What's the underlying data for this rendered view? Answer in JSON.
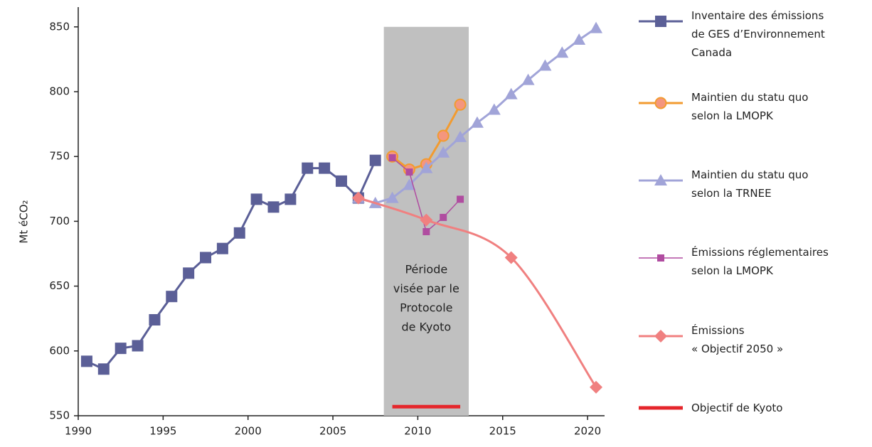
{
  "chart_data": {
    "type": "line",
    "ylabel": "Mt éCO₂",
    "xlim": [
      1990,
      2021.3
    ],
    "xticks": [
      1990,
      1995,
      2000,
      2005,
      2010,
      2015,
      2020
    ],
    "ylim": [
      550,
      860
    ],
    "yticks": [
      550,
      600,
      650,
      700,
      750,
      800,
      850
    ],
    "shaded_region": {
      "xlim": [
        2008,
        2013
      ],
      "ylim": [
        550,
        850
      ],
      "color": "#c0c0c0"
    },
    "annotation": [
      "Période",
      "visée par le",
      "Protocole",
      "de Kyoto"
    ],
    "series": [
      {
        "name": "Inventaire des émissions\nde GES d’Environnement\nCanada",
        "color": "#5b5f97",
        "marker": "square",
        "line_width": 3,
        "x": [
          1990.5,
          1991.5,
          1992.5,
          1993.5,
          1994.5,
          1995.5,
          1996.5,
          1997.5,
          1998.5,
          1999.5,
          2000.5,
          2001.5,
          2002.5,
          2003.5,
          2004.5,
          2005.5,
          2006.5,
          2007.5
        ],
        "values": [
          592,
          586,
          602,
          604,
          624,
          642,
          660,
          672,
          679,
          691,
          717,
          711,
          717,
          741,
          741,
          731,
          718,
          747
        ]
      },
      {
        "name": "Maintien du statu quo\nselon la LMOPK",
        "color": "#f29b30",
        "marker_fill": "#f4967e",
        "marker": "circle",
        "line_width": 3,
        "x": [
          2008.5,
          2009.5,
          2010.5,
          2011.5,
          2012.5
        ],
        "values": [
          750,
          740,
          744,
          766,
          790
        ]
      },
      {
        "name": "Maintien du statu quo\nselon la TRNEE",
        "color": "#a1a4d8",
        "marker": "triangle",
        "line_width": 3,
        "x": [
          2006.5,
          2007.5,
          2008.5,
          2009.5,
          2010.5,
          2011.5,
          2012.5,
          2013.5,
          2014.5,
          2015.5,
          2016.5,
          2017.5,
          2018.5,
          2019.5,
          2020.5
        ],
        "values": [
          718,
          714,
          718,
          728,
          741,
          753,
          765,
          776,
          786,
          798,
          809,
          820,
          830,
          840,
          849
        ]
      },
      {
        "name": "Émissions réglementaires\nselon la LMOPK",
        "color": "#b04ca0",
        "marker": "small-square",
        "line_width": 1.5,
        "x": [
          2008.5,
          2009.5,
          2010.5,
          2011.5,
          2012.5
        ],
        "values": [
          749,
          738,
          692,
          703,
          717
        ]
      },
      {
        "name": "Émissions\n« Objectif 2050 »",
        "color": "#f08080",
        "marker": "diamond",
        "line_width": 3,
        "smooth": true,
        "x": [
          2006.5,
          2010.5,
          2015.5,
          2020.5
        ],
        "values": [
          718,
          701,
          672,
          572
        ]
      },
      {
        "name": "Objectif de Kyoto",
        "color": "#e5262b",
        "marker": "none",
        "line_width": 5,
        "x": [
          2008.5,
          2012.5
        ],
        "values": [
          557,
          557
        ]
      }
    ]
  }
}
